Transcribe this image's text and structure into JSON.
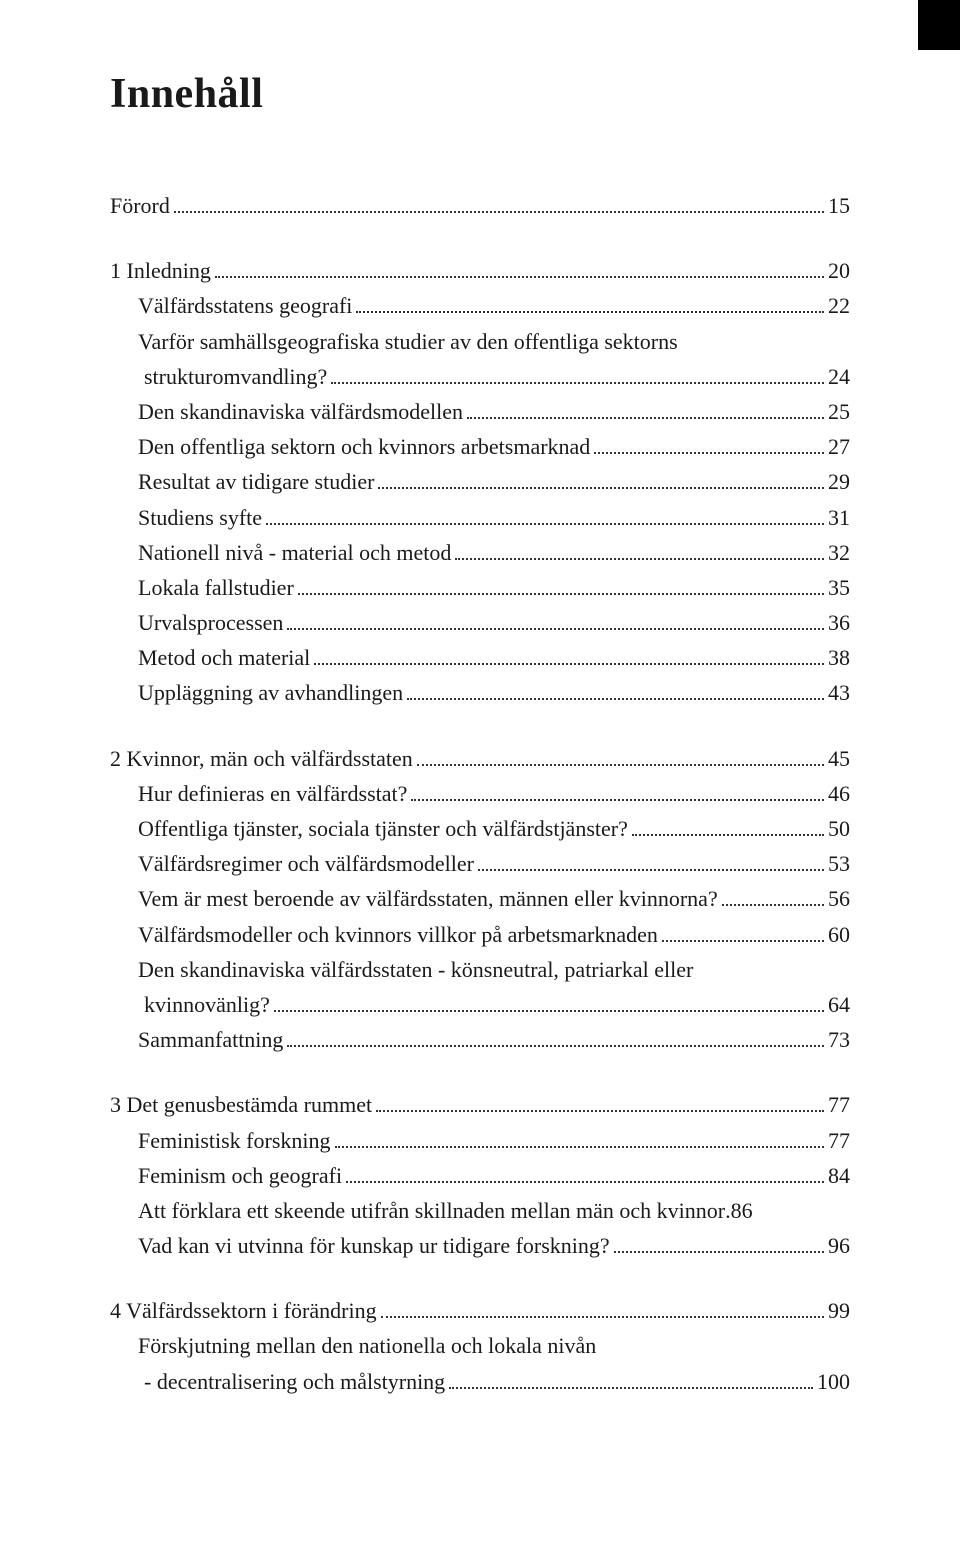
{
  "title": "Innehåll",
  "colors": {
    "background": "#ffffff",
    "text": "#1a1a1a",
    "dots": "#333333",
    "corner": "#000000"
  },
  "typography": {
    "title_fontsize": 42,
    "body_fontsize": 22,
    "line_height": 1.6,
    "font_family": "Book Antiqua / Palatino serif"
  },
  "toc": {
    "block0": {
      "t0": "Förord",
      "p0": "15"
    },
    "block1": {
      "t0": "1 Inledning",
      "p0": "20",
      "t1": "Välfärdsstatens geografi",
      "p1": "22",
      "t2a": "Varför samhällsgeografiska studier av den offentliga sektorns",
      "t2b": "strukturomvandling?",
      "p2": "24",
      "t3": "Den skandinaviska välfärdsmodellen",
      "p3": "25",
      "t4": "Den offentliga sektorn och kvinnors arbetsmarknad",
      "p4": "27",
      "t5": "Resultat av tidigare studier",
      "p5": "29",
      "t6": "Studiens syfte",
      "p6": "31",
      "t7": "Nationell nivå - material och metod",
      "p7": "32",
      "t8": "Lokala fallstudier",
      "p8": "35",
      "t9": "Urvalsprocessen",
      "p9": "36",
      "t10": "Metod och material",
      "p10": "38",
      "t11": "Uppläggning av avhandlingen",
      "p11": "43"
    },
    "block2": {
      "t0": "2 Kvinnor, män och välfärdsstaten",
      "p0": "45",
      "t1": "Hur definieras en välfärdsstat?",
      "p1": "46",
      "t2": "Offentliga tjänster, sociala tjänster och välfärdstjänster?",
      "p2": "50",
      "t3": "Välfärdsregimer och välfärdsmodeller",
      "p3": "53",
      "t4": "Vem är mest beroende av välfärdsstaten, männen eller kvinnorna?",
      "p4": "56",
      "t5": "Välfärdsmodeller och kvinnors villkor på arbetsmarknaden",
      "p5": "60",
      "t6a": "Den skandinaviska välfärdsstaten - könsneutral, patriarkal eller",
      "t6b": "kvinnovänlig?",
      "p6": "64",
      "t7": "Sammanfattning",
      "p7": "73"
    },
    "block3": {
      "t0": "3 Det genusbestämda rummet",
      "p0": "77",
      "t1": "Feministisk forskning",
      "p1": "77",
      "t2": "Feminism och geografi",
      "p2": "84",
      "t3": "Att förklara ett skeende utifrån skillnaden mellan män och kvinnor",
      "p3": ".86",
      "t4": "Vad kan vi utvinna för kunskap ur tidigare forskning?",
      "p4": "96"
    },
    "block4": {
      "t0": "4 Välfärdssektorn i förändring",
      "p0": "99",
      "t1a": "Förskjutning mellan den nationella och lokala nivån",
      "t1b": "-  decentralisering och målstyrning",
      "p1": "100"
    }
  }
}
